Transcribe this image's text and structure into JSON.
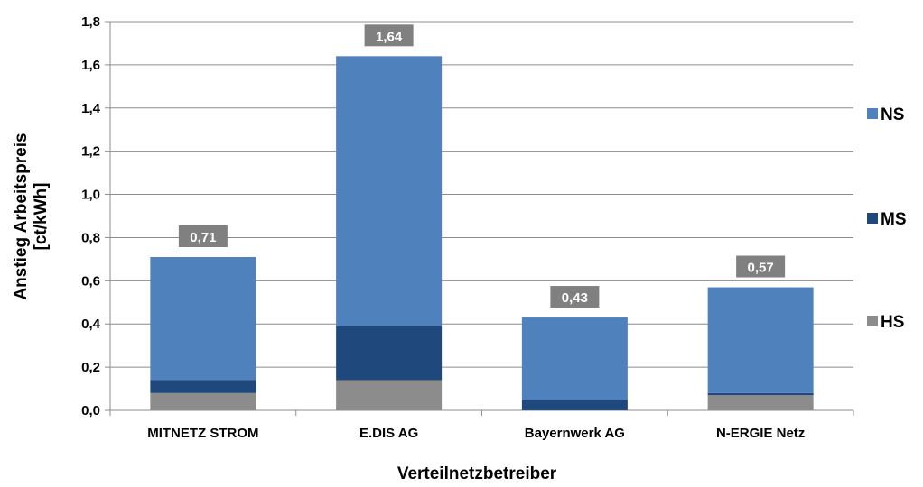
{
  "chart_data": {
    "type": "bar",
    "stacked": true,
    "categories": [
      "MITNETZ STROM",
      "E.DIS AG",
      "Bayernwerk AG",
      "N-ERGIE Netz"
    ],
    "series": [
      {
        "name": "HS",
        "values": [
          0.08,
          0.14,
          0.0,
          0.07
        ],
        "color": "#8c8c8c"
      },
      {
        "name": "MS",
        "values": [
          0.06,
          0.25,
          0.05,
          0.01
        ],
        "color": "#1f497d"
      },
      {
        "name": "NS",
        "values": [
          0.57,
          1.25,
          0.38,
          0.49
        ],
        "color": "#4f81bd"
      }
    ],
    "totals": [
      "0,71",
      "1,64",
      "0,43",
      "0,57"
    ],
    "total_values": [
      0.71,
      1.64,
      0.43,
      0.57
    ],
    "yticks": [
      "0,0",
      "0,2",
      "0,4",
      "0,6",
      "0,8",
      "1,0",
      "1,2",
      "1,4",
      "1,6",
      "1,8"
    ],
    "ylim": [
      0,
      1.8
    ],
    "ylabel_line1": "Anstieg Arbeitspreis",
    "ylabel_line2": "[ct/kWh]",
    "xlabel": "Verteilnetzbetreiber",
    "legend": [
      "NS",
      "MS",
      "HS"
    ],
    "legend_position": "right",
    "grid": true,
    "label_box_color": "#808080",
    "gridline_color": "#8c8c8c"
  }
}
